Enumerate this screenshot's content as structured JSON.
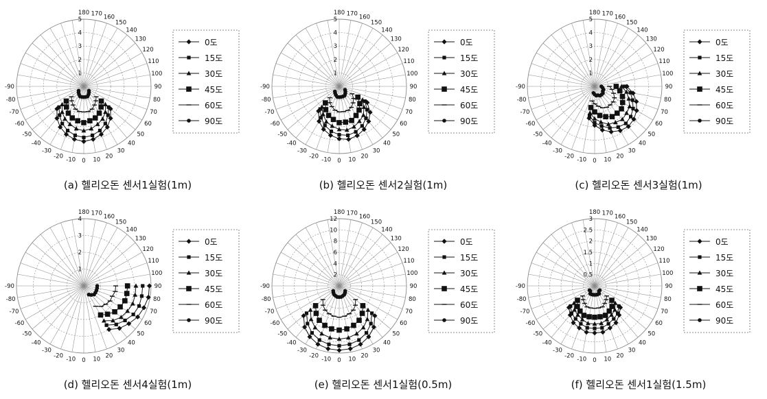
{
  "figure": {
    "angle_labels": [
      "0",
      "10",
      "20",
      "30",
      "40",
      "50",
      "60",
      "70",
      "80",
      "90",
      "100",
      "110",
      "120",
      "130",
      "140",
      "150",
      "160",
      "170",
      "180",
      "-10",
      "-20",
      "-30",
      "-40",
      "-50",
      "-60",
      "-70",
      "-80",
      "-90"
    ],
    "legend_labels": [
      "0도",
      "15도",
      "30도",
      "45도",
      "60도",
      "90도"
    ],
    "palette": {
      "ink": "#111111",
      "grid": "#8a8a8a"
    }
  },
  "chart_data": [
    {
      "type": "polar-line",
      "caption": "(a) 헬리오돈 센서1실험(1m)",
      "rmax": 5,
      "r_ticks": [
        "1",
        "2",
        "3",
        "4",
        "5"
      ],
      "theta_deg": [
        -50,
        -40,
        -30,
        -20,
        -10,
        0,
        10,
        20,
        30,
        40,
        50
      ],
      "series": [
        {
          "name": "0도",
          "marker": "diamond",
          "r": [
            2.6,
            3.1,
            3.5,
            3.8,
            4.0,
            4.1,
            4.0,
            3.8,
            3.5,
            3.1,
            2.6
          ]
        },
        {
          "name": "15도",
          "marker": "square",
          "r": [
            2.4,
            2.8,
            3.2,
            3.5,
            3.7,
            3.8,
            3.7,
            3.5,
            3.2,
            2.8,
            2.4
          ]
        },
        {
          "name": "30도",
          "marker": "triangle",
          "r": [
            2.1,
            2.5,
            2.8,
            3.0,
            3.2,
            3.3,
            3.2,
            3.0,
            2.8,
            2.5,
            2.1
          ]
        },
        {
          "name": "45도",
          "marker": "bigsquare",
          "r": [
            1.7,
            2.0,
            2.3,
            2.5,
            2.6,
            2.7,
            2.6,
            2.5,
            2.3,
            2.0,
            1.7
          ]
        },
        {
          "name": "60도",
          "marker": "dash",
          "r": [
            1.2,
            1.4,
            1.6,
            1.8,
            1.9,
            1.9,
            1.9,
            1.8,
            1.6,
            1.4,
            1.2
          ]
        },
        {
          "name": "90도",
          "marker": "dot",
          "r": [
            0.5,
            0.6,
            0.7,
            0.8,
            0.8,
            0.8,
            0.8,
            0.8,
            0.7,
            0.6,
            0.5
          ]
        }
      ]
    },
    {
      "type": "polar-line",
      "caption": "(b) 헬리오돈 센서2실험(1m)",
      "rmax": 5,
      "r_ticks": [
        "1",
        "2",
        "3",
        "4",
        "5"
      ],
      "theta_deg": [
        -40,
        -30,
        -20,
        -10,
        0,
        10,
        20,
        30,
        40,
        50,
        60
      ],
      "series": [
        {
          "name": "0도",
          "marker": "diamond",
          "r": [
            2.4,
            3.0,
            3.4,
            3.7,
            3.9,
            4.0,
            3.9,
            3.7,
            3.4,
            3.0,
            2.4
          ]
        },
        {
          "name": "15도",
          "marker": "square",
          "r": [
            2.2,
            2.7,
            3.1,
            3.4,
            3.6,
            3.7,
            3.6,
            3.4,
            3.1,
            2.7,
            2.2
          ]
        },
        {
          "name": "30도",
          "marker": "triangle",
          "r": [
            2.0,
            2.4,
            2.8,
            3.0,
            3.2,
            3.3,
            3.2,
            3.0,
            2.8,
            2.4,
            2.0
          ]
        },
        {
          "name": "45도",
          "marker": "bigsquare",
          "r": [
            1.6,
            2.0,
            2.3,
            2.5,
            2.7,
            2.7,
            2.7,
            2.5,
            2.3,
            2.0,
            1.6
          ]
        },
        {
          "name": "60도",
          "marker": "dash",
          "r": [
            1.1,
            1.4,
            1.6,
            1.8,
            1.9,
            1.9,
            1.9,
            1.8,
            1.6,
            1.4,
            1.1
          ]
        },
        {
          "name": "90도",
          "marker": "dot",
          "r": [
            0.5,
            0.6,
            0.7,
            0.8,
            0.8,
            0.8,
            0.8,
            0.8,
            0.7,
            0.6,
            0.5
          ]
        }
      ]
    },
    {
      "type": "polar-line",
      "caption": "(c) 헬리오돈 센서3실험(1m)",
      "rmax": 5,
      "r_ticks": [
        "1",
        "2",
        "3",
        "4",
        "5"
      ],
      "theta_deg": [
        -10,
        0,
        10,
        20,
        30,
        40,
        50,
        60,
        70,
        80,
        90
      ],
      "series": [
        {
          "name": "0도",
          "marker": "diamond",
          "r": [
            2.4,
            2.9,
            3.3,
            3.6,
            3.8,
            3.9,
            3.8,
            3.6,
            3.3,
            2.9,
            2.4
          ]
        },
        {
          "name": "15도",
          "marker": "square",
          "r": [
            2.2,
            2.7,
            3.0,
            3.3,
            3.5,
            3.6,
            3.5,
            3.3,
            3.0,
            2.7,
            2.2
          ]
        },
        {
          "name": "30도",
          "marker": "triangle",
          "r": [
            2.0,
            2.4,
            2.7,
            3.0,
            3.1,
            3.2,
            3.1,
            3.0,
            2.7,
            2.4,
            2.0
          ]
        },
        {
          "name": "45도",
          "marker": "bigsquare",
          "r": [
            1.6,
            1.9,
            2.2,
            2.4,
            2.6,
            2.6,
            2.6,
            2.4,
            2.2,
            1.9,
            1.6
          ]
        },
        {
          "name": "60도",
          "marker": "dash",
          "r": [
            1.1,
            1.3,
            1.5,
            1.7,
            1.8,
            1.8,
            1.8,
            1.7,
            1.5,
            1.3,
            1.1
          ]
        },
        {
          "name": "90도",
          "marker": "dot",
          "r": [
            0.5,
            0.6,
            0.7,
            0.7,
            0.8,
            0.8,
            0.8,
            0.7,
            0.7,
            0.6,
            0.5
          ]
        }
      ]
    },
    {
      "type": "polar-line",
      "caption": "(d) 헬리오돈 센서4실험(1m)",
      "rmax": 4,
      "r_ticks": [
        "1",
        "2",
        "3",
        "4"
      ],
      "theta_deg": [
        30,
        40,
        50,
        60,
        70,
        80,
        90
      ],
      "series": [
        {
          "name": "0도",
          "marker": "diamond",
          "r": [
            3.0,
            3.3,
            3.5,
            3.7,
            3.8,
            3.9,
            3.9
          ]
        },
        {
          "name": "15도",
          "marker": "square",
          "r": [
            2.7,
            3.0,
            3.2,
            3.4,
            3.5,
            3.5,
            3.5
          ]
        },
        {
          "name": "30도",
          "marker": "triangle",
          "r": [
            2.4,
            2.7,
            2.9,
            3.0,
            3.1,
            3.1,
            3.1
          ]
        },
        {
          "name": "45도",
          "marker": "bigsquare",
          "r": [
            2.0,
            2.2,
            2.4,
            2.5,
            2.6,
            2.6,
            2.6
          ]
        },
        {
          "name": "60도",
          "marker": "dash",
          "r": [
            1.4,
            1.6,
            1.7,
            1.8,
            1.8,
            1.9,
            1.9
          ]
        },
        {
          "name": "90도",
          "marker": "dot",
          "r": [
            0.6,
            0.7,
            0.8,
            0.8,
            0.8,
            0.8,
            0.8
          ]
        }
      ]
    },
    {
      "type": "polar-line",
      "caption": "(e) 헬리오돈 센서1실험(0.5m)",
      "rmax": 12,
      "r_ticks": [
        "2",
        "4",
        "6",
        "8",
        "10",
        "12"
      ],
      "theta_deg": [
        -50,
        -40,
        -30,
        -20,
        -10,
        0,
        10,
        20,
        30,
        40,
        50
      ],
      "series": [
        {
          "name": "0도",
          "marker": "diamond",
          "r": [
            8.3,
            9.6,
            10.5,
            11.1,
            11.4,
            11.5,
            11.4,
            11.1,
            10.5,
            9.6,
            8.3
          ]
        },
        {
          "name": "15도",
          "marker": "square",
          "r": [
            7.6,
            8.8,
            9.7,
            10.3,
            10.6,
            10.7,
            10.6,
            10.3,
            9.7,
            8.8,
            7.6
          ]
        },
        {
          "name": "30도",
          "marker": "triangle",
          "r": [
            6.7,
            7.8,
            8.6,
            9.1,
            9.4,
            9.5,
            9.4,
            9.1,
            8.6,
            7.8,
            6.7
          ]
        },
        {
          "name": "45도",
          "marker": "bigsquare",
          "r": [
            5.5,
            6.4,
            7.1,
            7.5,
            7.8,
            7.9,
            7.8,
            7.5,
            7.1,
            6.4,
            5.5
          ]
        },
        {
          "name": "60도",
          "marker": "dash",
          "r": [
            3.8,
            4.5,
            5.0,
            5.3,
            5.5,
            5.6,
            5.5,
            5.3,
            5.0,
            4.5,
            3.8
          ]
        },
        {
          "name": "90도",
          "marker": "dot",
          "r": [
            1.4,
            1.6,
            1.8,
            1.9,
            2.0,
            2.0,
            2.0,
            1.9,
            1.8,
            1.6,
            1.4
          ]
        }
      ]
    },
    {
      "type": "polar-line",
      "caption": "(f) 헬리오돈 센서1실험(1.5m)",
      "rmax": 3,
      "r_ticks": [
        "0.5",
        "1",
        "1.5",
        "2",
        "2.5",
        "3"
      ],
      "theta_deg": [
        -50,
        -40,
        -30,
        -20,
        -10,
        0,
        10,
        20,
        30,
        40,
        50
      ],
      "series": [
        {
          "name": "0도",
          "marker": "diamond",
          "r": [
            1.5,
            1.7,
            1.9,
            2.0,
            2.1,
            2.1,
            2.1,
            2.0,
            1.9,
            1.7,
            1.5
          ]
        },
        {
          "name": "15도",
          "marker": "square",
          "r": [
            1.4,
            1.6,
            1.7,
            1.8,
            1.9,
            1.9,
            1.9,
            1.8,
            1.7,
            1.6,
            1.4
          ]
        },
        {
          "name": "30도",
          "marker": "triangle",
          "r": [
            1.2,
            1.4,
            1.5,
            1.6,
            1.7,
            1.7,
            1.7,
            1.6,
            1.5,
            1.4,
            1.2
          ]
        },
        {
          "name": "45도",
          "marker": "bigsquare",
          "r": [
            1.0,
            1.2,
            1.3,
            1.4,
            1.4,
            1.4,
            1.4,
            1.4,
            1.3,
            1.2,
            1.0
          ]
        },
        {
          "name": "60도",
          "marker": "dash",
          "r": [
            0.7,
            0.8,
            0.9,
            1.0,
            1.0,
            1.0,
            1.0,
            1.0,
            0.9,
            0.8,
            0.7
          ]
        },
        {
          "name": "90도",
          "marker": "dot",
          "r": [
            0.3,
            0.3,
            0.4,
            0.4,
            0.4,
            0.4,
            0.4,
            0.4,
            0.4,
            0.3,
            0.3
          ]
        }
      ]
    }
  ]
}
